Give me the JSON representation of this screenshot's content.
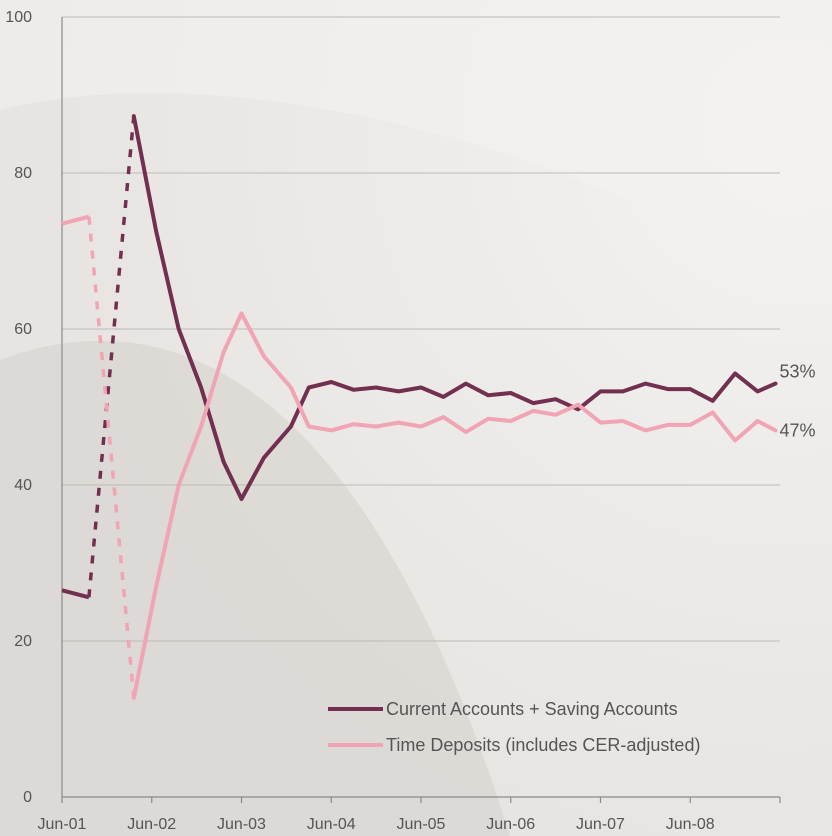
{
  "chart_data": {
    "type": "line",
    "title": "",
    "xlabel": "",
    "ylabel": "",
    "ylim": [
      0,
      100
    ],
    "yticks": [
      0,
      20,
      40,
      60,
      80,
      100
    ],
    "x_tick_labels": [
      "Jun-01",
      "Jun-02",
      "Jun-03",
      "Jun-04",
      "Jun-05",
      "Jun-06",
      "Jun-07",
      "Jun-08"
    ],
    "grid": "horizontal",
    "legend_position": "bottom-right",
    "x_note": "x values are years; Jun-01 = 2001.0, quarterly observations",
    "series": [
      {
        "name": "Current Accounts + Saving Accounts",
        "color": "#722f4f",
        "end_label": "53%",
        "dashed_segment_end_index": 2,
        "points": [
          [
            2001.0,
            26.5
          ],
          [
            2001.3,
            25.6
          ],
          [
            2001.8,
            87.3
          ],
          [
            2002.05,
            72.5
          ],
          [
            2002.3,
            60.0
          ],
          [
            2002.55,
            52.5
          ],
          [
            2002.8,
            43.0
          ],
          [
            2003.0,
            38.2
          ],
          [
            2003.25,
            43.5
          ],
          [
            2003.55,
            47.5
          ],
          [
            2003.75,
            52.5
          ],
          [
            2004.0,
            53.2
          ],
          [
            2004.25,
            52.2
          ],
          [
            2004.5,
            52.5
          ],
          [
            2004.75,
            52.0
          ],
          [
            2005.0,
            52.5
          ],
          [
            2005.25,
            51.3
          ],
          [
            2005.5,
            53.0
          ],
          [
            2005.75,
            51.5
          ],
          [
            2006.0,
            51.8
          ],
          [
            2006.25,
            50.5
          ],
          [
            2006.5,
            51.0
          ],
          [
            2006.75,
            49.7
          ],
          [
            2007.0,
            52.0
          ],
          [
            2007.25,
            52.0
          ],
          [
            2007.5,
            53.0
          ],
          [
            2007.75,
            52.3
          ],
          [
            2008.0,
            52.3
          ],
          [
            2008.25,
            50.8
          ],
          [
            2008.5,
            54.3
          ],
          [
            2008.75,
            52.0
          ],
          [
            2008.95,
            53.0
          ]
        ]
      },
      {
        "name": "Time Deposits (includes CER-adjusted)",
        "color": "#f0a4b4",
        "end_label": "47%",
        "dashed_segment_end_index": 2,
        "points": [
          [
            2001.0,
            73.5
          ],
          [
            2001.3,
            74.4
          ],
          [
            2001.8,
            12.7
          ],
          [
            2002.05,
            27.0
          ],
          [
            2002.3,
            40.0
          ],
          [
            2002.55,
            47.5
          ],
          [
            2002.8,
            57.0
          ],
          [
            2003.0,
            62.0
          ],
          [
            2003.25,
            56.5
          ],
          [
            2003.55,
            52.5
          ],
          [
            2003.75,
            47.5
          ],
          [
            2004.0,
            47.0
          ],
          [
            2004.25,
            47.8
          ],
          [
            2004.5,
            47.5
          ],
          [
            2004.75,
            48.0
          ],
          [
            2005.0,
            47.5
          ],
          [
            2005.25,
            48.7
          ],
          [
            2005.5,
            46.8
          ],
          [
            2005.75,
            48.5
          ],
          [
            2006.0,
            48.2
          ],
          [
            2006.25,
            49.5
          ],
          [
            2006.5,
            49.0
          ],
          [
            2006.75,
            50.3
          ],
          [
            2007.0,
            48.0
          ],
          [
            2007.25,
            48.2
          ],
          [
            2007.5,
            47.0
          ],
          [
            2007.75,
            47.7
          ],
          [
            2008.0,
            47.7
          ],
          [
            2008.25,
            49.3
          ],
          [
            2008.5,
            45.7
          ],
          [
            2008.75,
            48.2
          ],
          [
            2008.95,
            47.0
          ]
        ]
      }
    ]
  }
}
